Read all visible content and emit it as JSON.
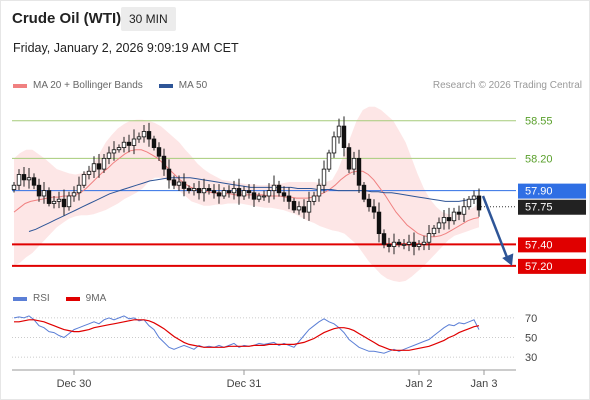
{
  "header": {
    "title": "Crude Oil (WTI)",
    "timeframe": "30 MIN",
    "datetime": "Friday, January 2, 2026 9:09:19 AM CET",
    "copyright": "Research © 2026 Trading Central"
  },
  "legend": {
    "ma20": "MA 20 + Bollinger Bands",
    "ma50": "MA 50",
    "rsi": "RSI",
    "rsi_ma": "9MA"
  },
  "colors": {
    "bollinger_fill": "#fde2e2",
    "ma20": "#f08080",
    "ma50": "#2e5597",
    "current_price": "#2f6fe4",
    "support": "#e00000",
    "resistance": "#a6cc7a",
    "resistance_text": "#5aa02c",
    "rsi_line": "#5b7fd6",
    "rsi_ma": "#e00000",
    "forecast_arrow": "#2e5597"
  },
  "chart_data": [
    {
      "type": "candlestick",
      "price_levels": [
        {
          "value": 58.55,
          "label": "58.55",
          "kind": "resistance"
        },
        {
          "value": 58.2,
          "label": "58.20",
          "kind": "resistance"
        },
        {
          "value": 57.9,
          "label": "57.90",
          "kind": "current"
        },
        {
          "value": 57.75,
          "label": "57.75",
          "kind": "pivot"
        },
        {
          "value": 57.4,
          "label": "57.40",
          "kind": "support"
        },
        {
          "value": 57.2,
          "label": "57.20",
          "kind": "support"
        }
      ],
      "x_ticks": [
        {
          "label": "Dec 30",
          "index": 12
        },
        {
          "label": "Dec 31",
          "index": 46
        },
        {
          "label": "Jan 2",
          "index": 81
        },
        {
          "label": "Jan 3",
          "index": 94
        }
      ],
      "ylim": [
        57.05,
        58.78
      ],
      "closes": [
        57.95,
        58.05,
        58.0,
        58.02,
        57.95,
        57.85,
        57.9,
        57.78,
        57.8,
        57.82,
        57.75,
        57.85,
        57.88,
        57.95,
        58.05,
        58.08,
        58.15,
        58.1,
        58.2,
        58.25,
        58.28,
        58.3,
        58.35,
        58.32,
        58.38,
        58.4,
        58.45,
        58.38,
        58.3,
        58.22,
        58.1,
        58.0,
        57.95,
        57.98,
        57.92,
        57.9,
        57.92,
        57.88,
        57.92,
        57.9,
        57.88,
        57.85,
        57.9,
        57.88,
        57.92,
        57.85,
        57.9,
        57.88,
        57.82,
        57.85,
        57.85,
        57.9,
        57.95,
        57.88,
        57.85,
        57.8,
        57.72,
        57.75,
        57.7,
        57.8,
        57.85,
        57.95,
        58.1,
        58.25,
        58.4,
        58.5,
        58.3,
        58.1,
        58.2,
        57.95,
        57.82,
        57.75,
        57.7,
        57.5,
        57.4,
        57.38,
        57.42,
        57.4,
        57.4,
        57.42,
        57.38,
        57.4,
        57.42,
        57.5,
        57.55,
        57.6,
        57.65,
        57.62,
        57.7,
        57.68,
        57.75,
        57.82,
        57.85,
        57.72
      ],
      "ma20": [
        57.7,
        57.74,
        57.78,
        57.8,
        57.81,
        57.82,
        57.83,
        57.84,
        57.84,
        57.85,
        57.85,
        57.86,
        57.88,
        57.92,
        57.97,
        58.02,
        58.07,
        58.11,
        58.16,
        58.2,
        58.24,
        58.27,
        58.28,
        58.28,
        58.26,
        58.23,
        58.2,
        58.15,
        58.1,
        58.05,
        58.0,
        57.96,
        57.93,
        57.91,
        57.9,
        57.89,
        57.88,
        57.87,
        57.87,
        57.87,
        57.86,
        57.86,
        57.86,
        57.86,
        57.86,
        57.86,
        57.85,
        57.85,
        57.85,
        57.84,
        57.84,
        57.83,
        57.83,
        57.83,
        57.84,
        57.86,
        57.88,
        57.91,
        57.95,
        58.0,
        58.04,
        58.07,
        58.08,
        58.08,
        58.05,
        58.0,
        57.93,
        57.86,
        57.78,
        57.7,
        57.64,
        57.58,
        57.54,
        57.5,
        57.48,
        57.47,
        57.47,
        57.48,
        57.5,
        57.53,
        57.56,
        57.59,
        57.62,
        57.64,
        57.65
      ],
      "ma50": [
        57.52,
        57.54,
        57.57,
        57.6,
        57.63,
        57.66,
        57.69,
        57.72,
        57.75,
        57.78,
        57.81,
        57.84,
        57.87,
        57.89,
        57.91,
        57.93,
        57.95,
        57.97,
        57.99,
        58.0,
        58.01,
        58.02,
        58.02,
        58.02,
        58.02,
        58.01,
        58.0,
        57.99,
        57.98,
        57.97,
        57.96,
        57.95,
        57.94,
        57.93,
        57.93,
        57.93,
        57.93,
        57.93,
        57.93,
        57.93,
        57.92,
        57.92,
        57.92,
        57.91,
        57.91,
        57.91,
        57.9,
        57.9,
        57.9,
        57.9,
        57.9,
        57.89,
        57.89,
        57.88,
        57.88,
        57.87,
        57.86,
        57.85,
        57.84,
        57.83,
        57.82,
        57.81,
        57.8,
        57.8,
        57.8,
        57.81,
        57.82,
        57.83
      ],
      "bb_upper": [
        58.2,
        58.25,
        58.28,
        58.28,
        58.24,
        58.2,
        58.15,
        58.1,
        58.08,
        58.06,
        58.05,
        58.06,
        58.08,
        58.15,
        58.25,
        58.35,
        58.42,
        58.48,
        58.52,
        58.55,
        58.56,
        58.56,
        58.55,
        58.53,
        58.5,
        58.45,
        58.4,
        58.35,
        58.28,
        58.22,
        58.15,
        58.1,
        58.06,
        58.03,
        58.0,
        57.99,
        57.98,
        57.97,
        57.96,
        57.96,
        57.95,
        57.95,
        57.96,
        57.96,
        57.97,
        57.98,
        57.98,
        57.98,
        57.98,
        57.98,
        57.97,
        57.98,
        58.0,
        58.1,
        58.25,
        58.4,
        58.55,
        58.65,
        58.68,
        58.68,
        58.65,
        58.6,
        58.55,
        58.45,
        58.35,
        58.2,
        58.05,
        57.92,
        57.82,
        57.75,
        57.7,
        57.68,
        57.68,
        57.7,
        57.72,
        57.74,
        57.78
      ],
      "bb_lower": [
        57.2,
        57.23,
        57.28,
        57.32,
        57.38,
        57.44,
        57.5,
        57.56,
        57.6,
        57.64,
        57.66,
        57.67,
        57.67,
        57.68,
        57.7,
        57.72,
        57.75,
        57.78,
        57.82,
        57.85,
        57.88,
        57.92,
        57.98,
        58.02,
        58.02,
        58.0,
        57.95,
        57.9,
        57.85,
        57.8,
        57.78,
        57.76,
        57.76,
        57.77,
        57.77,
        57.78,
        57.78,
        57.78,
        57.77,
        57.76,
        57.75,
        57.74,
        57.74,
        57.73,
        57.72,
        57.7,
        57.68,
        57.65,
        57.62,
        57.6,
        57.57,
        57.55,
        57.53,
        57.52,
        57.5,
        57.45,
        57.4,
        57.32,
        57.24,
        57.18,
        57.12,
        57.08,
        57.06,
        57.05,
        57.06,
        57.1,
        57.15,
        57.2,
        57.26,
        57.32,
        57.38,
        57.44,
        57.48,
        57.5,
        57.52,
        57.54,
        57.56
      ],
      "forecast": {
        "from": 57.85,
        "to": 57.2
      }
    },
    {
      "type": "line",
      "title": "RSI",
      "y_ticks": [
        {
          "value": 70,
          "label": "70"
        },
        {
          "value": 50,
          "label": "50"
        },
        {
          "value": 30,
          "label": "30"
        }
      ],
      "ylim": [
        22,
        78
      ],
      "rsi": [
        70,
        71,
        70,
        72,
        68,
        62,
        60,
        56,
        55,
        52,
        50,
        54,
        58,
        60,
        62,
        64,
        66,
        64,
        68,
        70,
        68,
        70,
        72,
        69,
        70,
        67,
        68,
        62,
        58,
        50,
        45,
        40,
        38,
        40,
        42,
        40,
        38,
        42,
        40,
        41,
        40,
        42,
        40,
        42,
        44,
        40,
        42,
        41,
        42,
        44,
        43,
        44,
        45,
        42,
        44,
        42,
        40,
        46,
        52,
        58,
        62,
        66,
        69,
        66,
        64,
        60,
        55,
        48,
        44,
        40,
        38,
        36,
        36,
        35,
        34,
        36,
        38,
        36,
        38,
        40,
        42,
        44,
        46,
        48,
        52,
        56,
        60,
        63,
        62,
        65,
        64,
        66,
        68,
        58
      ],
      "rsi_ma": [
        66,
        66,
        67,
        68,
        68,
        67,
        66,
        64,
        62,
        60,
        58,
        57,
        56,
        56,
        57,
        58,
        60,
        61,
        62,
        63,
        64,
        65,
        66,
        67,
        68,
        68,
        68,
        67,
        65,
        62,
        59,
        55,
        51,
        48,
        45,
        43,
        42,
        41,
        40,
        40,
        40,
        40,
        40,
        41,
        41,
        41,
        41,
        41,
        42,
        42,
        42,
        43,
        43,
        43,
        43,
        43,
        43,
        44,
        45,
        47,
        49,
        52,
        55,
        57,
        59,
        60,
        60,
        59,
        57,
        54,
        51,
        48,
        45,
        42,
        40,
        38,
        37,
        37,
        37,
        37,
        38,
        39,
        40,
        41,
        43,
        45,
        47,
        50,
        52,
        55,
        57,
        59,
        61,
        62
      ]
    }
  ]
}
